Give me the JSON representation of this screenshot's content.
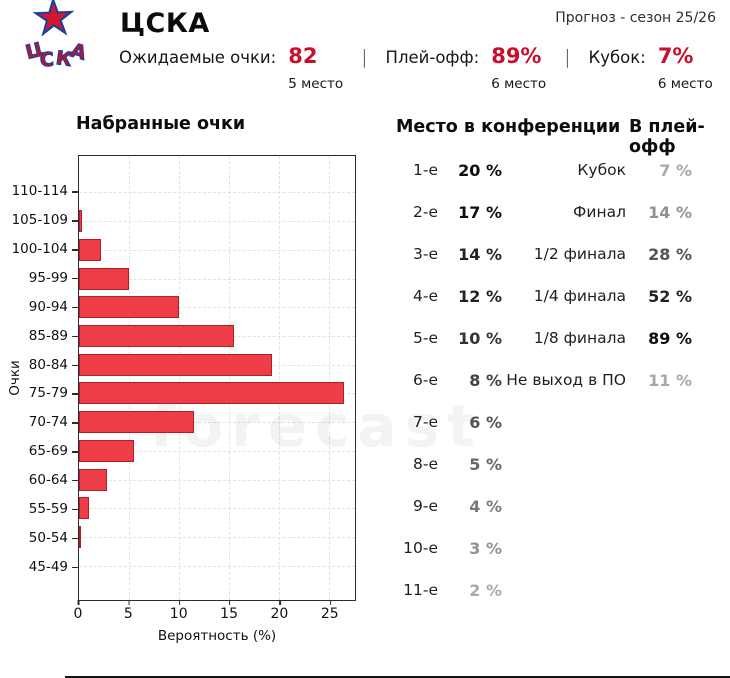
{
  "page": {
    "forecast_label": "Прогноз - сезон 25/26",
    "watermark": "forecast",
    "accent_color": "#C8102E",
    "logo_blue": "#1F4096",
    "bottom_rule_color": "#141414"
  },
  "header": {
    "team_name": "ЦСКА",
    "logo": {
      "star_glyph": "★",
      "letters": [
        "Ц",
        "С",
        "К",
        "А"
      ]
    },
    "separator": "|",
    "stats": [
      {
        "label": "Ожидаемые очки:",
        "value": "82",
        "place": "5 место"
      },
      {
        "label": "Плей-офф:",
        "value": "89%",
        "place": "6 место"
      },
      {
        "label": "Кубок:",
        "value": "7%",
        "place": "6 место"
      }
    ]
  },
  "chart_data": {
    "type": "bar",
    "orientation": "horizontal",
    "title": "Набранные очки",
    "xlabel": "Вероятность (%)",
    "ylabel": "Очки",
    "categories": [
      "110-114",
      "105-109",
      "100-104",
      "95-99",
      "90-94",
      "85-89",
      "80-84",
      "75-79",
      "70-74",
      "65-69",
      "60-64",
      "55-59",
      "50-54",
      "45-49"
    ],
    "values": [
      0,
      0.3,
      2.2,
      5,
      10,
      15.5,
      19.3,
      26.5,
      11.5,
      5.5,
      2.8,
      1,
      0.1,
      0
    ],
    "xticks": [
      0,
      5,
      10,
      15,
      20,
      25
    ],
    "xlim": [
      0,
      27.6
    ],
    "grid": true,
    "bar_color": "#EE3D47",
    "bar_border_color": "#AD1F29"
  },
  "conference": {
    "title": "Место в конференции",
    "unit": "%",
    "rows": [
      {
        "label": "1-е",
        "value": 20
      },
      {
        "label": "2-е",
        "value": 17
      },
      {
        "label": "3-е",
        "value": 14
      },
      {
        "label": "4-е",
        "value": 12
      },
      {
        "label": "5-е",
        "value": 10
      },
      {
        "label": "6-е",
        "value": 8
      },
      {
        "label": "7-е",
        "value": 6
      },
      {
        "label": "8-е",
        "value": 5
      },
      {
        "label": "9-е",
        "value": 4
      },
      {
        "label": "10-е",
        "value": 3
      },
      {
        "label": "11-е",
        "value": 2
      }
    ]
  },
  "playoff": {
    "title": "В плей-офф",
    "unit": "%",
    "rows": [
      {
        "label": "Кубок",
        "value": 7
      },
      {
        "label": "Финал",
        "value": 14
      },
      {
        "label": "1/2 финала",
        "value": 28
      },
      {
        "label": "1/4 финала",
        "value": 52
      },
      {
        "label": "1/8 финала",
        "value": 89
      },
      {
        "label": "Не выход в ПО",
        "value": 11
      }
    ]
  }
}
